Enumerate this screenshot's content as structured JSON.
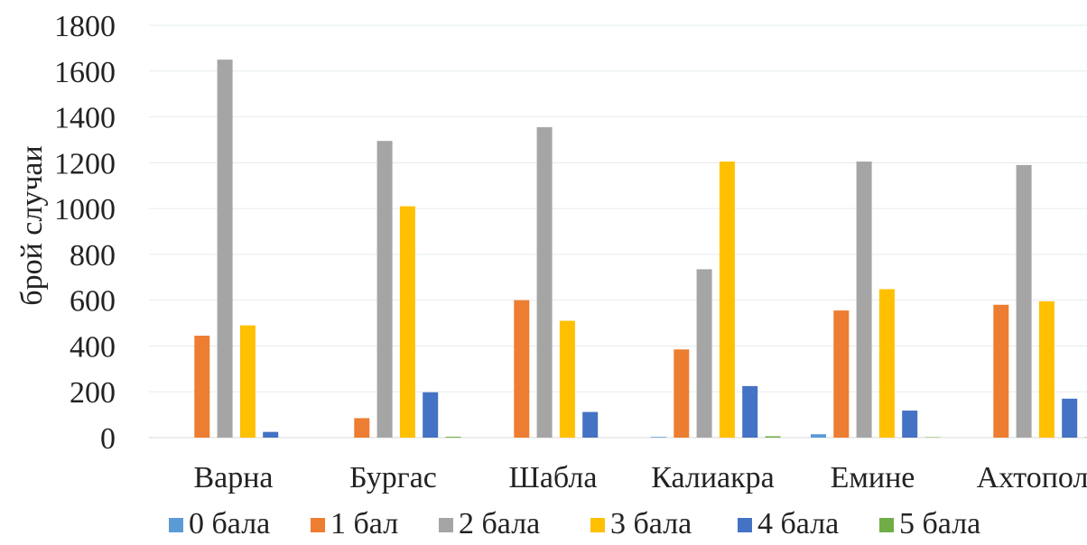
{
  "chart_data": {
    "type": "bar",
    "title": "",
    "xlabel": "",
    "ylabel": "брой случаи",
    "ylim": [
      0,
      1800
    ],
    "yticks": [
      0,
      200,
      400,
      600,
      800,
      1000,
      1200,
      1400,
      1600,
      1800
    ],
    "grid": true,
    "legend_position": "bottom",
    "categories": [
      "Варна",
      "Бургас",
      "Шабла",
      "Калиакра",
      "Емине",
      "Ахтопол"
    ],
    "series": [
      {
        "name": "0 бала",
        "color": "#5b9bd5",
        "values": [
          0,
          0,
          0,
          3,
          15,
          0
        ]
      },
      {
        "name": "1 бал",
        "color": "#ed7d31",
        "values": [
          445,
          85,
          600,
          385,
          555,
          580
        ]
      },
      {
        "name": "2 бала",
        "color": "#a5a5a5",
        "values": [
          1650,
          1295,
          1355,
          735,
          1205,
          1190
        ]
      },
      {
        "name": "3 бала",
        "color": "#ffc000",
        "values": [
          490,
          1010,
          510,
          1205,
          648,
          595
        ]
      },
      {
        "name": "4 бала",
        "color": "#4472c4",
        "values": [
          25,
          198,
          112,
          225,
          118,
          170
        ]
      },
      {
        "name": "5 бала",
        "color": "#70ad47",
        "values": [
          0,
          4,
          0,
          6,
          2,
          2
        ]
      }
    ]
  }
}
